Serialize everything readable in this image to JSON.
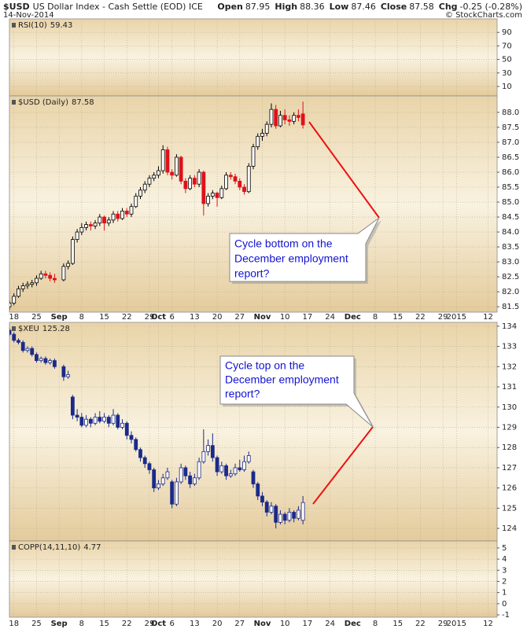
{
  "header": {
    "symbol": "$USD",
    "name": "US Dollar Index - Cash Settle (EOD) ICE",
    "date": "14-Nov-2014",
    "source": "© StockCharts.com",
    "quote": [
      {
        "label": "Open",
        "value": "87.95"
      },
      {
        "label": "High",
        "value": "88.36"
      },
      {
        "label": "Low",
        "value": "87.46"
      },
      {
        "label": "Close",
        "value": "87.58"
      },
      {
        "label": "Chg",
        "value": "-0.25 (-0.28%)"
      }
    ]
  },
  "chart_data": {
    "type": "candlestick",
    "xlim": [
      "2014-08-15",
      "2015-01-14"
    ],
    "xticks": [
      {
        "value": "2014-08-18",
        "label": "18"
      },
      {
        "value": "2014-08-25",
        "label": "25"
      },
      {
        "value": "2014-09-01",
        "label": "Sep"
      },
      {
        "value": "2014-09-08",
        "label": "8"
      },
      {
        "value": "2014-09-15",
        "label": "15"
      },
      {
        "value": "2014-09-22",
        "label": "22"
      },
      {
        "value": "2014-09-29",
        "label": "29"
      },
      {
        "value": "2014-10-01",
        "label": "Oct"
      },
      {
        "value": "2014-10-06",
        "label": "6"
      },
      {
        "value": "2014-10-13",
        "label": "13"
      },
      {
        "value": "2014-10-20",
        "label": "20"
      },
      {
        "value": "2014-10-27",
        "label": "27"
      },
      {
        "value": "2014-11-03",
        "label": "Nov"
      },
      {
        "value": "2014-11-10",
        "label": "10"
      },
      {
        "value": "2014-11-17",
        "label": "17"
      },
      {
        "value": "2014-11-24",
        "label": "24"
      },
      {
        "value": "2014-12-01",
        "label": "Dec"
      },
      {
        "value": "2014-12-08",
        "label": "8"
      },
      {
        "value": "2014-12-15",
        "label": "15"
      },
      {
        "value": "2014-12-22",
        "label": "22"
      },
      {
        "value": "2014-12-29",
        "label": "29"
      },
      {
        "value": "2015-01-01",
        "label": "2015"
      },
      {
        "value": "2015-01-12",
        "label": "12"
      }
    ],
    "x": [
      "2014-08-15",
      "2014-08-18",
      "2014-08-19",
      "2014-08-20",
      "2014-08-21",
      "2014-08-22",
      "2014-08-25",
      "2014-08-26",
      "2014-08-27",
      "2014-08-28",
      "2014-08-29",
      "2014-09-02",
      "2014-09-03",
      "2014-09-04",
      "2014-09-05",
      "2014-09-08",
      "2014-09-09",
      "2014-09-10",
      "2014-09-11",
      "2014-09-12",
      "2014-09-15",
      "2014-09-16",
      "2014-09-17",
      "2014-09-18",
      "2014-09-19",
      "2014-09-22",
      "2014-09-23",
      "2014-09-24",
      "2014-09-25",
      "2014-09-26",
      "2014-09-29",
      "2014-09-30",
      "2014-10-01",
      "2014-10-02",
      "2014-10-03",
      "2014-10-06",
      "2014-10-07",
      "2014-10-08",
      "2014-10-09",
      "2014-10-10",
      "2014-10-13",
      "2014-10-14",
      "2014-10-15",
      "2014-10-16",
      "2014-10-17",
      "2014-10-20",
      "2014-10-21",
      "2014-10-22",
      "2014-10-23",
      "2014-10-24",
      "2014-10-27",
      "2014-10-28",
      "2014-10-29",
      "2014-10-30",
      "2014-10-31",
      "2014-11-03",
      "2014-11-04",
      "2014-11-05",
      "2014-11-06",
      "2014-11-07",
      "2014-11-10",
      "2014-11-11",
      "2014-11-12",
      "2014-11-13",
      "2014-11-14"
    ],
    "panels": [
      {
        "name": "RSI(10)",
        "last": 59.43,
        "ylim": [
          -4,
          110
        ],
        "yticks": [
          10,
          30,
          50,
          70,
          90
        ]
      },
      {
        "name": "$USD (Daily)",
        "last": 87.58,
        "ylim": [
          81.32,
          88.55
        ],
        "up_color": "#000000",
        "down_color": "#e0101a",
        "yticks": [
          81.5,
          {
            "value": 82,
            "label": "82.0"
          },
          82.5,
          {
            "value": 83,
            "label": "83.0"
          },
          83.5,
          {
            "value": 84,
            "label": "84.0"
          },
          84.5,
          {
            "value": 85,
            "label": "85.0"
          },
          85.5,
          {
            "value": 86,
            "label": "86.0"
          },
          86.5,
          {
            "value": 87,
            "label": "87.0"
          },
          87.5,
          {
            "value": 88,
            "label": "88.0"
          }
        ],
        "ohlc": [
          [
            81.5,
            81.7,
            81.4,
            81.62
          ],
          [
            81.62,
            81.95,
            81.55,
            81.85
          ],
          [
            81.85,
            82.2,
            81.8,
            82.1
          ],
          [
            82.1,
            82.3,
            82.0,
            82.2
          ],
          [
            82.2,
            82.35,
            82.1,
            82.25
          ],
          [
            82.25,
            82.4,
            82.15,
            82.3
          ],
          [
            82.3,
            82.55,
            82.2,
            82.45
          ],
          [
            82.45,
            82.7,
            82.4,
            82.6
          ],
          [
            82.6,
            82.7,
            82.45,
            82.55
          ],
          [
            82.55,
            82.65,
            82.35,
            82.45
          ],
          [
            82.45,
            82.6,
            82.3,
            82.4
          ],
          [
            82.4,
            82.95,
            82.35,
            82.85
          ],
          [
            82.85,
            83.05,
            82.75,
            82.95
          ],
          [
            82.95,
            83.85,
            82.9,
            83.75
          ],
          [
            83.75,
            84.1,
            83.65,
            84.0
          ],
          [
            84.0,
            84.3,
            83.9,
            84.15
          ],
          [
            84.15,
            84.35,
            84.05,
            84.25
          ],
          [
            84.25,
            84.35,
            84.05,
            84.2
          ],
          [
            84.2,
            84.4,
            84.1,
            84.3
          ],
          [
            84.3,
            84.6,
            84.2,
            84.5
          ],
          [
            84.5,
            84.55,
            84.05,
            84.3
          ],
          [
            84.3,
            84.5,
            84.2,
            84.4
          ],
          [
            84.4,
            84.7,
            84.3,
            84.6
          ],
          [
            84.6,
            84.7,
            84.35,
            84.45
          ],
          [
            84.45,
            84.8,
            84.4,
            84.7
          ],
          [
            84.7,
            84.8,
            84.5,
            84.6
          ],
          [
            84.6,
            84.95,
            84.5,
            84.85
          ],
          [
            84.85,
            85.3,
            84.8,
            85.2
          ],
          [
            85.2,
            85.5,
            85.1,
            85.4
          ],
          [
            85.4,
            85.7,
            85.3,
            85.6
          ],
          [
            85.6,
            85.9,
            85.5,
            85.8
          ],
          [
            85.8,
            86.0,
            85.7,
            85.9
          ],
          [
            85.9,
            86.2,
            85.8,
            86.05
          ],
          [
            86.05,
            86.9,
            85.95,
            86.75
          ],
          [
            86.75,
            86.85,
            85.9,
            86.0
          ],
          [
            86.0,
            86.1,
            85.75,
            85.9
          ],
          [
            85.9,
            86.6,
            85.85,
            86.5
          ],
          [
            86.5,
            86.55,
            85.6,
            85.7
          ],
          [
            85.7,
            85.8,
            85.3,
            85.45
          ],
          [
            85.45,
            85.9,
            85.4,
            85.8
          ],
          [
            85.8,
            85.9,
            85.5,
            85.6
          ],
          [
            85.6,
            86.1,
            85.5,
            86.0
          ],
          [
            86.0,
            86.05,
            84.55,
            84.95
          ],
          [
            84.95,
            85.3,
            84.85,
            85.2
          ],
          [
            85.2,
            85.4,
            85.1,
            85.3
          ],
          [
            85.3,
            85.35,
            84.85,
            85.15
          ],
          [
            85.15,
            85.55,
            85.1,
            85.45
          ],
          [
            85.45,
            86.0,
            85.4,
            85.9
          ],
          [
            85.9,
            86.0,
            85.75,
            85.85
          ],
          [
            85.85,
            85.95,
            85.6,
            85.7
          ],
          [
            85.7,
            85.8,
            85.4,
            85.5
          ],
          [
            85.5,
            85.6,
            85.25,
            85.35
          ],
          [
            85.35,
            86.3,
            85.3,
            86.2
          ],
          [
            86.2,
            86.95,
            86.1,
            86.85
          ],
          [
            86.85,
            87.3,
            86.75,
            87.2
          ],
          [
            87.2,
            87.45,
            87.05,
            87.3
          ],
          [
            87.3,
            87.7,
            87.2,
            87.6
          ],
          [
            87.6,
            88.3,
            87.5,
            88.1
          ],
          [
            88.1,
            88.25,
            87.45,
            87.55
          ],
          [
            87.55,
            88.05,
            87.5,
            87.9
          ],
          [
            87.9,
            88.1,
            87.6,
            87.75
          ],
          [
            87.75,
            87.9,
            87.55,
            87.7
          ],
          [
            87.7,
            88.0,
            87.6,
            87.9
          ],
          [
            87.9,
            88.1,
            87.7,
            87.83
          ],
          [
            87.95,
            88.36,
            87.46,
            87.58
          ]
        ]
      },
      {
        "name": "$XEU",
        "last": 125.28,
        "ylim": [
          123.38,
          134.19
        ],
        "up_color": "#1b2a8a",
        "down_color": "#1b2a8a",
        "yticks": [
          124,
          125,
          126,
          127,
          128,
          129,
          130,
          131,
          132,
          133,
          134
        ],
        "ohlc": [
          [
            133.8,
            133.9,
            133.5,
            133.6
          ],
          [
            133.6,
            133.7,
            133.2,
            133.3
          ],
          [
            133.3,
            133.4,
            133.1,
            133.2
          ],
          [
            133.2,
            133.3,
            132.7,
            132.8
          ],
          [
            132.8,
            133.0,
            132.7,
            132.9
          ],
          [
            132.9,
            133.0,
            132.5,
            132.6
          ],
          [
            132.6,
            132.7,
            132.2,
            132.3
          ],
          [
            132.3,
            132.5,
            132.2,
            132.4
          ],
          [
            132.4,
            132.5,
            132.1,
            132.2
          ],
          [
            132.2,
            132.4,
            132.1,
            132.3
          ],
          [
            132.3,
            132.4,
            131.9,
            132.0
          ],
          [
            132.0,
            132.1,
            131.3,
            131.5
          ],
          [
            131.5,
            131.8,
            131.4,
            131.6
          ],
          [
            130.5,
            130.6,
            129.4,
            129.6
          ],
          [
            129.6,
            129.9,
            129.3,
            129.5
          ],
          [
            129.5,
            129.7,
            129.0,
            129.1
          ],
          [
            129.1,
            129.6,
            129.0,
            129.4
          ],
          [
            129.4,
            129.5,
            129.0,
            129.2
          ],
          [
            129.2,
            129.7,
            129.1,
            129.5
          ],
          [
            129.5,
            129.8,
            129.2,
            129.3
          ],
          [
            129.3,
            129.7,
            129.2,
            129.5
          ],
          [
            129.5,
            129.6,
            129.0,
            129.2
          ],
          [
            129.2,
            129.9,
            129.1,
            129.6
          ],
          [
            129.6,
            129.7,
            128.9,
            129.0
          ],
          [
            129.0,
            129.4,
            128.9,
            129.2
          ],
          [
            129.2,
            129.3,
            128.4,
            128.6
          ],
          [
            128.6,
            128.8,
            128.2,
            128.4
          ],
          [
            128.4,
            128.5,
            127.8,
            127.9
          ],
          [
            127.9,
            128.0,
            127.3,
            127.5
          ],
          [
            127.5,
            127.6,
            127.0,
            127.2
          ],
          [
            127.2,
            127.3,
            126.7,
            126.9
          ],
          [
            126.9,
            127.0,
            125.8,
            126.0
          ],
          [
            126.0,
            126.4,
            125.9,
            126.2
          ],
          [
            126.2,
            126.7,
            126.1,
            126.5
          ],
          [
            126.5,
            127.0,
            126.4,
            126.8
          ],
          [
            126.3,
            126.4,
            125.0,
            125.2
          ],
          [
            125.2,
            126.5,
            125.1,
            126.3
          ],
          [
            126.3,
            127.2,
            126.2,
            127.0
          ],
          [
            127.0,
            127.1,
            126.4,
            126.6
          ],
          [
            126.6,
            126.8,
            126.0,
            126.2
          ],
          [
            126.2,
            126.7,
            126.1,
            126.5
          ],
          [
            126.5,
            127.5,
            126.4,
            127.3
          ],
          [
            127.3,
            128.9,
            127.2,
            127.8
          ],
          [
            127.8,
            128.4,
            127.6,
            128.1
          ],
          [
            128.1,
            128.7,
            127.3,
            127.5
          ],
          [
            127.5,
            127.6,
            126.6,
            126.8
          ],
          [
            126.8,
            127.3,
            126.7,
            127.1
          ],
          [
            127.1,
            127.2,
            126.4,
            126.6
          ],
          [
            126.6,
            126.9,
            126.5,
            126.7
          ],
          [
            126.7,
            127.2,
            126.6,
            127.0
          ],
          [
            127.0,
            127.4,
            126.8,
            126.9
          ],
          [
            126.9,
            127.6,
            126.8,
            127.3
          ],
          [
            127.3,
            127.8,
            127.2,
            127.6
          ],
          [
            126.8,
            126.9,
            126.0,
            126.2
          ],
          [
            126.2,
            126.3,
            125.4,
            125.6
          ],
          [
            125.6,
            125.8,
            125.1,
            125.3
          ],
          [
            125.3,
            125.4,
            124.6,
            124.8
          ],
          [
            124.8,
            125.3,
            124.7,
            125.1
          ],
          [
            125.1,
            125.2,
            124.0,
            124.3
          ],
          [
            124.3,
            124.9,
            124.2,
            124.7
          ],
          [
            124.7,
            124.8,
            124.2,
            124.4
          ],
          [
            124.4,
            125.0,
            124.3,
            124.8
          ],
          [
            124.8,
            124.9,
            124.3,
            124.5
          ],
          [
            124.5,
            125.1,
            124.4,
            124.9
          ],
          [
            124.4,
            125.6,
            124.2,
            125.28
          ]
        ]
      },
      {
        "name": "COPP(14,11,10)",
        "last": 4.77,
        "ylim": [
          -1.21,
          5.63
        ],
        "yticks": [
          -1,
          0,
          1,
          2,
          3,
          4,
          5
        ]
      }
    ],
    "annotations": [
      {
        "lines": [
          "Cycle bottom on the",
          "December employment",
          "report?"
        ]
      },
      {
        "lines": [
          "Cycle top on the",
          "December employment",
          "report?"
        ]
      }
    ]
  }
}
